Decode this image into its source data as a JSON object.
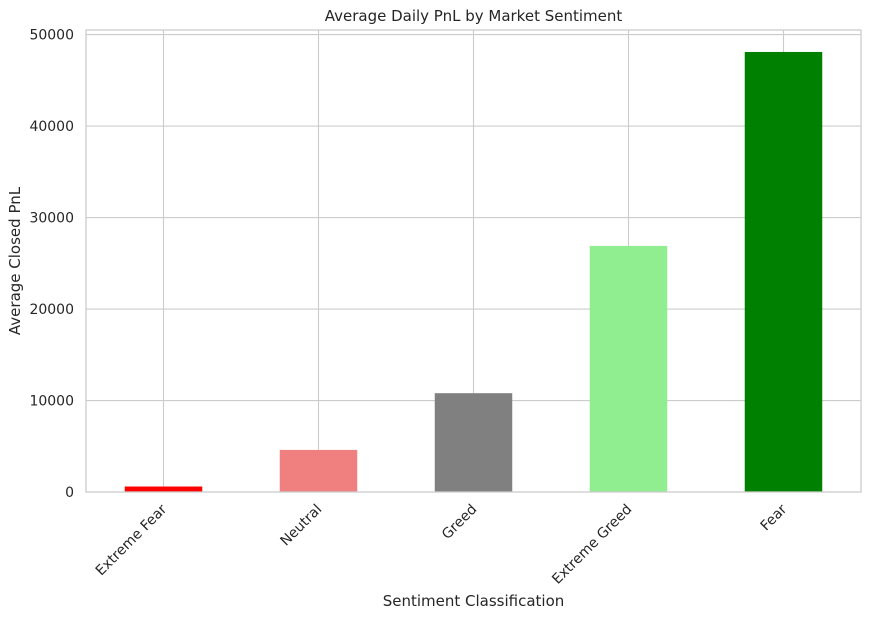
{
  "chart_data": {
    "type": "bar",
    "title": "Average Daily PnL by Market Sentiment",
    "xlabel": "Sentiment Classification",
    "ylabel": "Average Closed PnL",
    "categories": [
      "Extreme Fear",
      "Neutral",
      "Greed",
      "Extreme Greed",
      "Fear"
    ],
    "values": [
      600,
      4600,
      10800,
      26900,
      48100
    ],
    "colors": [
      "#ff0000",
      "#f08080",
      "#808080",
      "#90ee90",
      "#008000"
    ],
    "ylim": [
      0,
      50500
    ],
    "yticks": [
      0,
      10000,
      20000,
      30000,
      40000,
      50000
    ],
    "grid": true,
    "legend": "none"
  }
}
